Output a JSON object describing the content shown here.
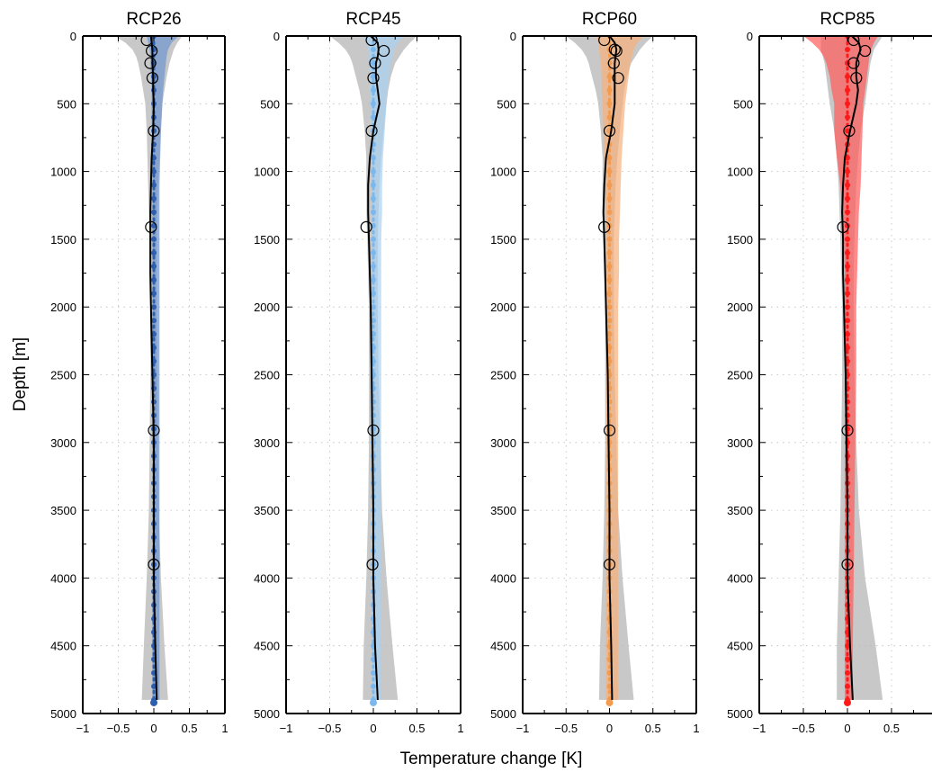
{
  "figure": {
    "ylabel": "Depth [m]",
    "xlabel": "Temperature change [K]"
  },
  "chart_data": [
    {
      "type": "line",
      "title": "RCP26",
      "xlim": [
        -1,
        1
      ],
      "ylim": [
        5000,
        0
      ],
      "xticks": [
        "−1",
        "−0.5",
        "0",
        "0.5",
        "1"
      ],
      "yticks": [
        "0",
        "500",
        "1000",
        "1500",
        "2000",
        "2500",
        "3000",
        "3500",
        "4000",
        "4500",
        "5000"
      ],
      "grid": true,
      "colors": {
        "model": "#2d5fae",
        "model_band": "#6f95cf",
        "obs_band": "#b5b5b5",
        "obs_line": "#000000"
      },
      "depth": [
        0,
        50,
        100,
        150,
        200,
        300,
        400,
        500,
        700,
        900,
        1100,
        1300,
        1500,
        1750,
        2000,
        2500,
        3000,
        3500,
        4000,
        4500,
        4900
      ],
      "series": [
        {
          "values": [
            0.0,
            0.0,
            0.0,
            0.0,
            0.0,
            0.0,
            0.0,
            0.0,
            0.0,
            0.0,
            0.0,
            0.0,
            0.0,
            0.0,
            0.0,
            0.0,
            0.0,
            0.0,
            0.0,
            0.0,
            0.0
          ]
        },
        {
          "values": [
            -0.04,
            -0.03,
            -0.02,
            -0.02,
            -0.02,
            -0.01,
            -0.01,
            0.0,
            -0.01,
            -0.03,
            -0.04,
            -0.05,
            -0.05,
            -0.05,
            -0.04,
            -0.02,
            0.0,
            0.0,
            0.0,
            0.02,
            0.04
          ]
        }
      ],
      "model_band": {
        "lo": [
          -0.1,
          -0.08,
          -0.06,
          -0.05,
          -0.05,
          -0.04,
          -0.03,
          -0.03,
          -0.03,
          -0.02,
          -0.02,
          -0.02,
          -0.02,
          -0.02,
          -0.02,
          -0.02,
          -0.02,
          -0.02,
          -0.02,
          -0.02,
          -0.02
        ],
        "hi": [
          0.35,
          0.25,
          0.2,
          0.18,
          0.17,
          0.15,
          0.13,
          0.12,
          0.1,
          0.09,
          0.08,
          0.08,
          0.08,
          0.08,
          0.08,
          0.08,
          0.08,
          0.08,
          0.08,
          0.08,
          0.08
        ]
      },
      "obs_band": {
        "lo": [
          -0.55,
          -0.4,
          -0.3,
          -0.25,
          -0.22,
          -0.18,
          -0.15,
          -0.12,
          -0.1,
          -0.09,
          -0.08,
          -0.07,
          -0.06,
          -0.05,
          -0.05,
          -0.05,
          -0.06,
          -0.07,
          -0.1,
          -0.14,
          -0.17
        ],
        "hi": [
          0.4,
          0.33,
          0.28,
          0.25,
          0.22,
          0.18,
          0.15,
          0.12,
          0.1,
          0.08,
          0.06,
          0.05,
          0.04,
          0.04,
          0.04,
          0.05,
          0.06,
          0.07,
          0.1,
          0.15,
          0.2
        ]
      },
      "obs_points": {
        "x": [
          -0.1,
          -0.03,
          -0.05,
          -0.02,
          0.0,
          -0.04,
          0.0,
          0.0
        ],
        "y": [
          30,
          110,
          200,
          310,
          700,
          1410,
          2910,
          3900
        ]
      }
    },
    {
      "type": "line",
      "title": "RCP45",
      "xlim": [
        -1,
        1
      ],
      "ylim": [
        5000,
        0
      ],
      "xticks": [
        "−1",
        "−0.5",
        "0",
        "0.5",
        "1"
      ],
      "yticks": [
        "0",
        "500",
        "1000",
        "1500",
        "2000",
        "2500",
        "3000",
        "3500",
        "4000",
        "4500",
        "5000"
      ],
      "grid": true,
      "colors": {
        "model": "#7bb8ee",
        "model_band": "#a9d1f2",
        "obs_band": "#b5b5b5",
        "obs_line": "#000000"
      },
      "depth": [
        0,
        50,
        100,
        150,
        200,
        300,
        400,
        500,
        700,
        900,
        1100,
        1300,
        1500,
        1750,
        2000,
        2500,
        3000,
        3500,
        4000,
        4500,
        4900
      ],
      "series": [
        {
          "values": [
            0.0,
            0.0,
            0.0,
            0.0,
            0.0,
            0.0,
            0.0,
            0.0,
            0.0,
            0.0,
            0.0,
            0.0,
            0.0,
            0.0,
            0.0,
            0.0,
            0.0,
            0.0,
            0.0,
            0.0,
            0.0
          ]
        },
        {
          "values": [
            -0.03,
            0.05,
            0.06,
            0.05,
            0.03,
            0.03,
            0.05,
            0.07,
            0.0,
            -0.04,
            -0.06,
            -0.06,
            -0.05,
            -0.04,
            -0.03,
            -0.02,
            -0.01,
            0.0,
            0.0,
            0.02,
            0.05
          ]
        }
      ],
      "model_band": {
        "lo": [
          -0.1,
          -0.08,
          -0.06,
          -0.05,
          -0.05,
          -0.04,
          -0.03,
          -0.03,
          -0.02,
          -0.02,
          -0.02,
          -0.02,
          -0.02,
          -0.02,
          -0.02,
          -0.02,
          -0.02,
          -0.02,
          -0.02,
          -0.02,
          -0.02
        ],
        "hi": [
          0.35,
          0.28,
          0.24,
          0.22,
          0.2,
          0.18,
          0.16,
          0.15,
          0.13,
          0.11,
          0.1,
          0.1,
          0.09,
          0.09,
          0.09,
          0.09,
          0.09,
          0.09,
          0.09,
          0.09,
          0.09
        ]
      },
      "obs_band": {
        "lo": [
          -0.5,
          -0.4,
          -0.32,
          -0.27,
          -0.24,
          -0.2,
          -0.16,
          -0.13,
          -0.1,
          -0.08,
          -0.08,
          -0.08,
          -0.07,
          -0.06,
          -0.05,
          -0.05,
          -0.05,
          -0.06,
          -0.08,
          -0.11,
          -0.12
        ],
        "hi": [
          0.5,
          0.42,
          0.35,
          0.3,
          0.25,
          0.2,
          0.17,
          0.15,
          0.12,
          0.09,
          0.07,
          0.06,
          0.05,
          0.05,
          0.05,
          0.06,
          0.08,
          0.1,
          0.15,
          0.22,
          0.28
        ]
      },
      "obs_points": {
        "x": [
          -0.02,
          0.12,
          0.02,
          0.0,
          -0.02,
          -0.08,
          0.0,
          -0.01
        ],
        "y": [
          30,
          110,
          200,
          310,
          700,
          1410,
          2910,
          3900
        ]
      }
    },
    {
      "type": "line",
      "title": "RCP60",
      "xlim": [
        -1,
        1
      ],
      "ylim": [
        5000,
        0
      ],
      "xticks": [
        "−1",
        "−0.5",
        "0",
        "0.5",
        "1"
      ],
      "yticks": [
        "0",
        "500",
        "1000",
        "1500",
        "2000",
        "2500",
        "3000",
        "3500",
        "4000",
        "4500",
        "5000"
      ],
      "grid": true,
      "colors": {
        "model": "#f39b4f",
        "model_band": "#f6b07c",
        "obs_band": "#b5b5b5",
        "obs_line": "#000000"
      },
      "depth": [
        0,
        50,
        100,
        150,
        200,
        300,
        400,
        500,
        700,
        900,
        1100,
        1300,
        1500,
        1750,
        2000,
        2500,
        3000,
        3500,
        4000,
        4500,
        4900
      ],
      "series": [
        {
          "values": [
            0.0,
            0.0,
            0.0,
            0.0,
            0.0,
            0.0,
            0.0,
            0.0,
            0.0,
            0.0,
            0.0,
            0.0,
            0.0,
            0.0,
            0.0,
            0.0,
            0.0,
            0.0,
            0.0,
            0.0,
            0.0
          ]
        },
        {
          "values": [
            0.0,
            0.06,
            0.08,
            0.07,
            0.06,
            0.06,
            0.06,
            0.06,
            0.02,
            -0.04,
            -0.06,
            -0.07,
            -0.06,
            -0.05,
            -0.04,
            -0.02,
            -0.01,
            0.0,
            0.0,
            0.02,
            0.03
          ]
        }
      ],
      "model_band": {
        "lo": [
          -0.15,
          -0.13,
          -0.12,
          -0.11,
          -0.1,
          -0.09,
          -0.09,
          -0.08,
          -0.07,
          -0.06,
          -0.05,
          -0.05,
          -0.04,
          -0.04,
          -0.04,
          -0.04,
          -0.04,
          -0.04,
          -0.04,
          -0.04,
          -0.04
        ],
        "hi": [
          0.4,
          0.32,
          0.28,
          0.26,
          0.24,
          0.22,
          0.2,
          0.18,
          0.16,
          0.14,
          0.13,
          0.12,
          0.11,
          0.11,
          0.1,
          0.1,
          0.1,
          0.1,
          0.1,
          0.1,
          0.1
        ]
      },
      "obs_band": {
        "lo": [
          -0.5,
          -0.4,
          -0.32,
          -0.27,
          -0.24,
          -0.2,
          -0.16,
          -0.13,
          -0.1,
          -0.08,
          -0.08,
          -0.08,
          -0.07,
          -0.06,
          -0.05,
          -0.05,
          -0.05,
          -0.06,
          -0.08,
          -0.11,
          -0.12
        ],
        "hi": [
          0.5,
          0.42,
          0.35,
          0.3,
          0.25,
          0.2,
          0.17,
          0.15,
          0.12,
          0.09,
          0.07,
          0.06,
          0.05,
          0.05,
          0.05,
          0.06,
          0.08,
          0.1,
          0.15,
          0.22,
          0.28
        ]
      },
      "obs_points": {
        "x": [
          -0.06,
          0.06,
          0.08,
          0.05,
          0.1,
          0.0,
          -0.06,
          0.0,
          0.0
        ],
        "y": [
          30,
          100,
          110,
          200,
          310,
          700,
          1410,
          2910,
          3900
        ]
      }
    },
    {
      "type": "line",
      "title": "RCP85",
      "xlim": [
        -1,
        1
      ],
      "ylim": [
        5000,
        0
      ],
      "xticks": [
        "−1",
        "−0.5",
        "0",
        "0.5"
      ],
      "yticks": [
        "0",
        "500",
        "1000",
        "1500",
        "2000",
        "2500",
        "3000",
        "3500",
        "4000",
        "4500",
        "5000"
      ],
      "grid": true,
      "colors": {
        "model": "#ff1a1a",
        "model_band": "#ff5a5a",
        "obs_band": "#b5b5b5",
        "obs_line": "#000000"
      },
      "depth": [
        0,
        50,
        100,
        150,
        200,
        300,
        400,
        500,
        700,
        900,
        1100,
        1300,
        1500,
        1750,
        2000,
        2500,
        3000,
        3500,
        4000,
        4500,
        4900
      ],
      "series": [
        {
          "values": [
            0.0,
            0.0,
            0.0,
            0.0,
            0.0,
            0.0,
            0.0,
            0.0,
            0.0,
            0.0,
            0.0,
            0.0,
            0.0,
            0.0,
            0.0,
            0.0,
            0.0,
            0.0,
            0.0,
            0.0,
            0.0
          ]
        },
        {
          "values": [
            0.05,
            0.13,
            0.15,
            0.12,
            0.1,
            0.1,
            0.12,
            0.1,
            0.03,
            -0.03,
            -0.05,
            -0.06,
            -0.05,
            -0.05,
            -0.04,
            -0.02,
            -0.01,
            0.0,
            0.0,
            0.03,
            0.06
          ]
        }
      ],
      "model_band": {
        "lo": [
          -0.5,
          -0.4,
          -0.32,
          -0.27,
          -0.24,
          -0.2,
          -0.18,
          -0.15,
          -0.15,
          -0.12,
          -0.08,
          -0.06,
          -0.04,
          -0.03,
          -0.03,
          -0.03,
          -0.03,
          -0.03,
          -0.03,
          -0.03,
          -0.03
        ],
        "hi": [
          0.35,
          0.3,
          0.27,
          0.25,
          0.24,
          0.22,
          0.2,
          0.18,
          0.17,
          0.16,
          0.15,
          0.13,
          0.12,
          0.11,
          0.1,
          0.1,
          0.09,
          0.08,
          0.07,
          0.06,
          0.06
        ]
      },
      "obs_band": {
        "lo": [
          -0.3,
          -0.3,
          -0.3,
          -0.28,
          -0.26,
          -0.24,
          -0.22,
          -0.2,
          -0.15,
          -0.12,
          -0.1,
          -0.09,
          -0.08,
          -0.07,
          -0.06,
          -0.06,
          -0.07,
          -0.08,
          -0.1,
          -0.12,
          -0.12
        ],
        "hi": [
          0.4,
          0.35,
          0.3,
          0.28,
          0.26,
          0.24,
          0.22,
          0.2,
          0.15,
          0.12,
          0.1,
          0.09,
          0.08,
          0.07,
          0.07,
          0.08,
          0.1,
          0.13,
          0.2,
          0.32,
          0.4
        ]
      },
      "obs_points": {
        "x": [
          0.07,
          0.2,
          0.07,
          0.1,
          0.02,
          -0.05,
          0.0,
          0.0
        ],
        "y": [
          30,
          110,
          200,
          310,
          700,
          1410,
          2910,
          3900
        ]
      }
    }
  ]
}
